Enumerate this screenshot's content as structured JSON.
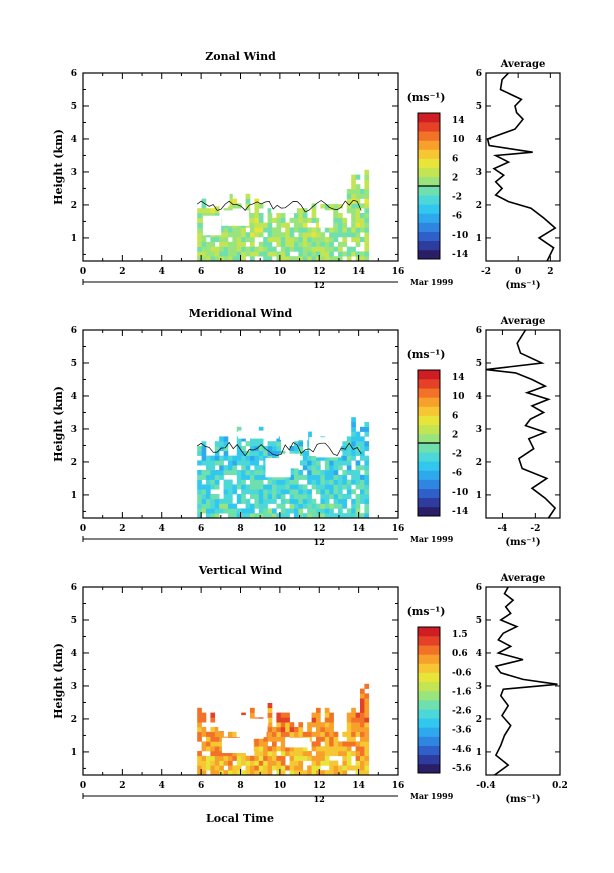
{
  "figure": {
    "date_label": "Mar 1999",
    "xlabel": "Local Time"
  },
  "colormap": [
    "#2a1f66",
    "#2d3c9e",
    "#2f5fc8",
    "#2f86e0",
    "#2ea9ee",
    "#32c7ee",
    "#4cd8d8",
    "#6fdfae",
    "#9ae47e",
    "#c3e453",
    "#e7e43a",
    "#f6c733",
    "#f7a02c",
    "#f27228",
    "#e44126",
    "#d01d24"
  ],
  "chart_data": [
    {
      "id": "zonal",
      "type": "heatmap",
      "title": "Zonal Wind",
      "ylabel": "Height (km)",
      "xlim": [
        0,
        16
      ],
      "ylim": [
        0.3,
        6
      ],
      "xticks": [
        0,
        2,
        4,
        6,
        8,
        10,
        12,
        14,
        16
      ],
      "yticks": [
        1,
        2,
        3,
        4,
        5,
        6
      ],
      "day_label": "12",
      "colorbar": {
        "unit": "(ms⁻¹)",
        "ticks": [
          "14",
          "10",
          "6",
          "2",
          "-2",
          "-6",
          "-10",
          "-14"
        ],
        "vmin": -16,
        "vmax": 16,
        "zero_line": true
      },
      "data_extent": {
        "x": [
          5.8,
          14.3
        ],
        "y": [
          0.3,
          2.9
        ]
      },
      "typical_value": 1.5,
      "average": {
        "title": "Average",
        "xlabel": "(ms⁻¹)",
        "xlim": [
          -2,
          2.6
        ],
        "xticks": [
          -2,
          0,
          2
        ],
        "heights": [
          0.3,
          0.7,
          1.0,
          1.3,
          1.6,
          1.9,
          2.1,
          2.3,
          2.5,
          2.7,
          2.9,
          3.1,
          3.3,
          3.5,
          3.6,
          3.8,
          4.0,
          4.3,
          4.6,
          4.8,
          5.0,
          5.2,
          5.5,
          5.8,
          6.0
        ],
        "values": [
          1.8,
          2.2,
          1.3,
          2.3,
          1.6,
          0.8,
          -0.6,
          -1.4,
          -1.0,
          -1.4,
          -0.9,
          -1.5,
          -0.6,
          -1.4,
          0.9,
          -1.8,
          -1.9,
          -0.2,
          0.3,
          -0.1,
          -0.2,
          0.2,
          -1.1,
          -1.0,
          -0.6
        ]
      }
    },
    {
      "id": "meridional",
      "type": "heatmap",
      "title": "Meridional Wind",
      "ylabel": "Height (km)",
      "xlim": [
        0,
        16
      ],
      "ylim": [
        0.3,
        6
      ],
      "xticks": [
        0,
        2,
        4,
        6,
        8,
        10,
        12,
        14,
        16
      ],
      "yticks": [
        1,
        2,
        3,
        4,
        5,
        6
      ],
      "day_label": "12",
      "colorbar": {
        "unit": "(ms⁻¹)",
        "ticks": [
          "14",
          "10",
          "6",
          "2",
          "-2",
          "-6",
          "-10",
          "-14"
        ],
        "vmin": -16,
        "vmax": 16,
        "zero_line": true
      },
      "data_extent": {
        "x": [
          5.8,
          14.3
        ],
        "y": [
          0.3,
          3.5
        ]
      },
      "typical_value": -3.5,
      "average": {
        "title": "Average",
        "xlabel": "(ms⁻¹)",
        "xlim": [
          -5,
          -0.5
        ],
        "xticks": [
          -4,
          -2
        ],
        "heights": [
          0.3,
          0.6,
          0.9,
          1.2,
          1.5,
          1.8,
          2.1,
          2.4,
          2.7,
          2.9,
          3.1,
          3.3,
          3.5,
          3.7,
          3.9,
          4.1,
          4.3,
          4.5,
          4.7,
          4.8,
          5.0,
          5.3,
          5.6,
          6.0
        ],
        "values": [
          -1.2,
          -0.8,
          -1.4,
          -2.2,
          -1.3,
          -2.8,
          -3.0,
          -2.1,
          -2.4,
          -1.4,
          -2.6,
          -2.3,
          -1.5,
          -2.2,
          -1.2,
          -2.5,
          -1.4,
          -2.2,
          -3.2,
          -5.1,
          -1.6,
          -2.9,
          -3.1,
          -2.6
        ]
      }
    },
    {
      "id": "vertical",
      "type": "heatmap",
      "title": "Vertical Wind",
      "ylabel": "Height (km)",
      "xlim": [
        0,
        16
      ],
      "ylim": [
        0.3,
        6
      ],
      "xticks": [
        0,
        2,
        4,
        6,
        8,
        10,
        12,
        14,
        16
      ],
      "yticks": [
        1,
        2,
        3,
        4,
        5,
        6
      ],
      "day_label": "12",
      "colorbar": {
        "unit": "(ms⁻¹)",
        "ticks": [
          "1.5",
          "0.6",
          "-0.6",
          "-1.6",
          "-2.6",
          "-3.6",
          "-4.6",
          "-5.6"
        ],
        "vmin": -6.0,
        "vmax": 2.0,
        "zero_line": false
      },
      "data_extent": {
        "x": [
          5.8,
          14.3
        ],
        "y": [
          0.3,
          2.9
        ]
      },
      "typical_value": 0.3,
      "average": {
        "title": "Average",
        "xlabel": "(ms⁻¹)",
        "xlim": [
          -0.4,
          0.2
        ],
        "xticks": [
          -0.4,
          0.2
        ],
        "heights": [
          0.3,
          0.6,
          0.9,
          1.2,
          1.5,
          1.8,
          2.1,
          2.4,
          2.7,
          2.9,
          3.05,
          3.2,
          3.4,
          3.6,
          3.8,
          4.0,
          4.2,
          4.4,
          4.6,
          4.8,
          5.0,
          5.2,
          5.4,
          5.6,
          5.8,
          6.0
        ],
        "values": [
          -0.33,
          -0.22,
          -0.32,
          -0.28,
          -0.25,
          -0.2,
          -0.27,
          -0.22,
          -0.28,
          -0.26,
          0.18,
          -0.1,
          -0.28,
          -0.32,
          -0.1,
          -0.3,
          -0.2,
          -0.3,
          -0.26,
          -0.15,
          -0.28,
          -0.2,
          -0.24,
          -0.18,
          -0.25,
          -0.22
        ]
      }
    }
  ]
}
